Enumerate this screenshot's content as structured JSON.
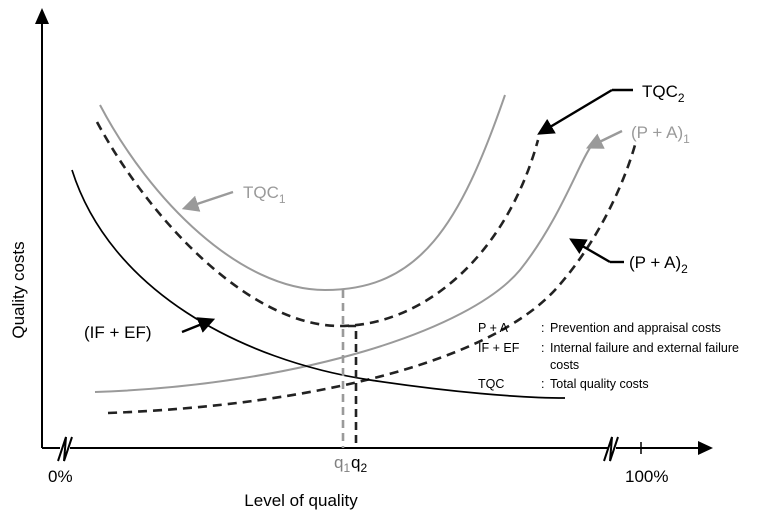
{
  "axes": {
    "y_label": "Quality costs",
    "x_label": "Level of quality",
    "x_min_label": "0%",
    "x_max_label": "100%"
  },
  "markers": {
    "q1": {
      "base": "q",
      "sub": "1"
    },
    "q2": {
      "base": "q",
      "sub": "2"
    }
  },
  "curve_labels": {
    "tqc1": {
      "base": "TQC",
      "sub": "1"
    },
    "tqc2": {
      "base": "TQC",
      "sub": "2"
    },
    "pa1": {
      "base": "(P + A)",
      "sub": "1"
    },
    "pa2": {
      "base": "(P + A)",
      "sub": "2"
    },
    "ifef": {
      "base": "(IF + EF)"
    }
  },
  "legend": [
    {
      "key": "P + A",
      "sep": ":",
      "desc": "Prevention and appraisal costs"
    },
    {
      "key": "IF + EF",
      "sep": ":",
      "desc": "Internal failure and external failure"
    },
    {
      "key": "",
      "sep": "",
      "desc": "costs"
    },
    {
      "key": "TQC",
      "sep": ":",
      "desc": "Total quality costs"
    }
  ],
  "colors": {
    "black": "#000000",
    "gray": "#9a9a9a",
    "dark_gray": "#808080"
  },
  "line_styles": {
    "tqc1": "solid-gray",
    "pa1": "solid-gray",
    "tqc2": "dashed-black",
    "pa2": "dashed-black",
    "ifef": "solid-black"
  }
}
